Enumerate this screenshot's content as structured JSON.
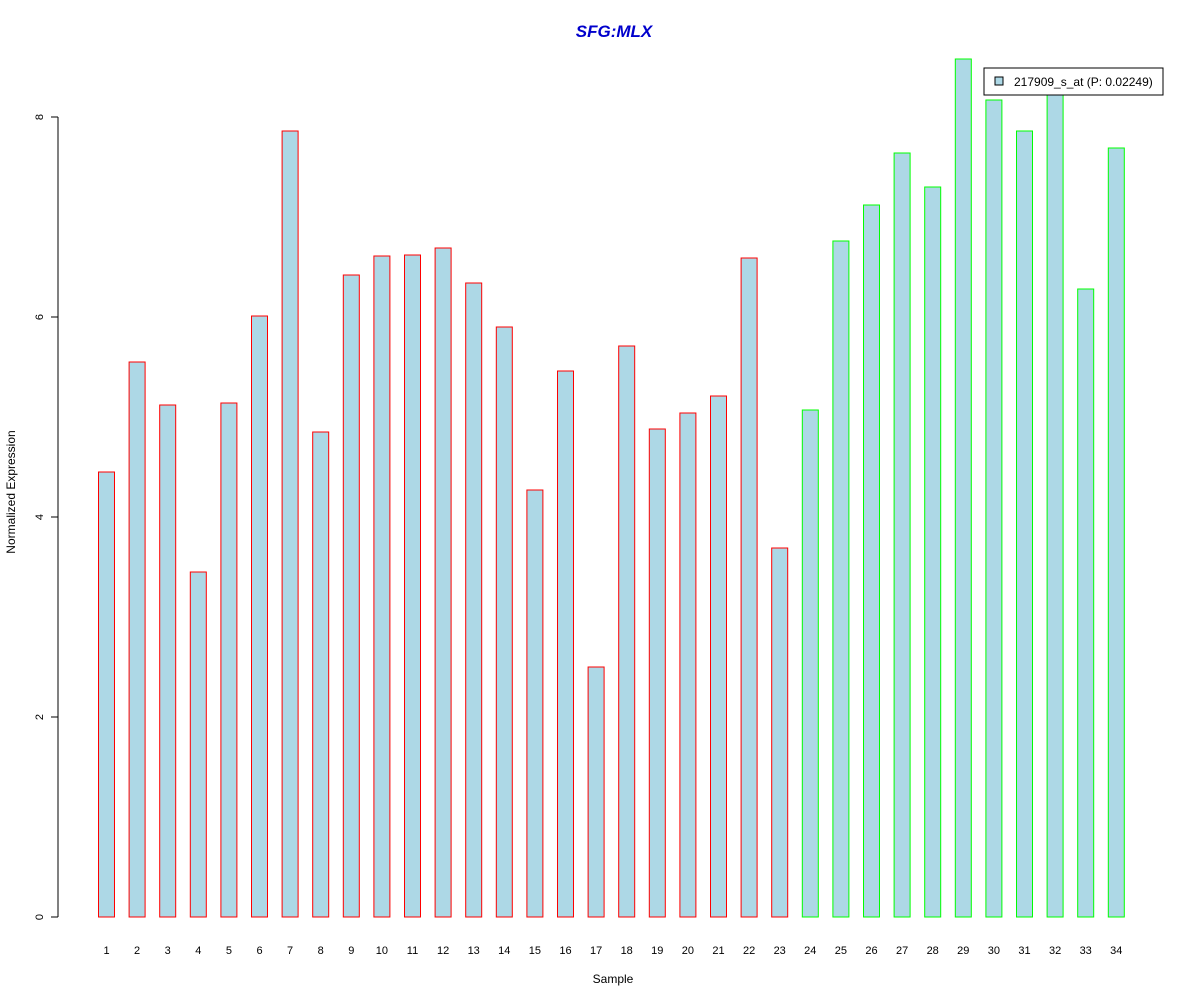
{
  "chart_data": {
    "type": "bar",
    "title": "SFG:MLX",
    "title_color": "#0000CC",
    "xlabel": "Sample",
    "ylabel": "Normalized Expression",
    "ylim": [
      0,
      8.6
    ],
    "yticks": [
      0,
      2,
      4,
      6,
      8
    ],
    "categories": [
      "1",
      "2",
      "3",
      "4",
      "5",
      "6",
      "7",
      "8",
      "9",
      "10",
      "11",
      "12",
      "13",
      "14",
      "15",
      "16",
      "17",
      "18",
      "19",
      "20",
      "21",
      "22",
      "23",
      "24",
      "25",
      "26",
      "27",
      "28",
      "29",
      "30",
      "31",
      "32",
      "33",
      "34"
    ],
    "values": [
      4.45,
      5.55,
      5.12,
      3.45,
      5.14,
      6.01,
      7.86,
      4.85,
      6.42,
      6.61,
      6.62,
      6.69,
      6.34,
      5.9,
      4.27,
      5.46,
      2.5,
      5.71,
      4.88,
      5.04,
      5.21,
      6.59,
      3.69,
      5.07,
      6.76,
      7.12,
      7.64,
      7.3,
      8.58,
      8.17,
      7.86,
      8.31,
      6.28,
      7.69
    ],
    "group_split_after": 23,
    "fill_color": "#ADD8E6",
    "border_colors": {
      "group1": "#FF0000",
      "group2": "#00FF00"
    },
    "legend": {
      "label": "217909_s_at (P: 0.02249)",
      "position": "top-right"
    },
    "grid": false
  }
}
